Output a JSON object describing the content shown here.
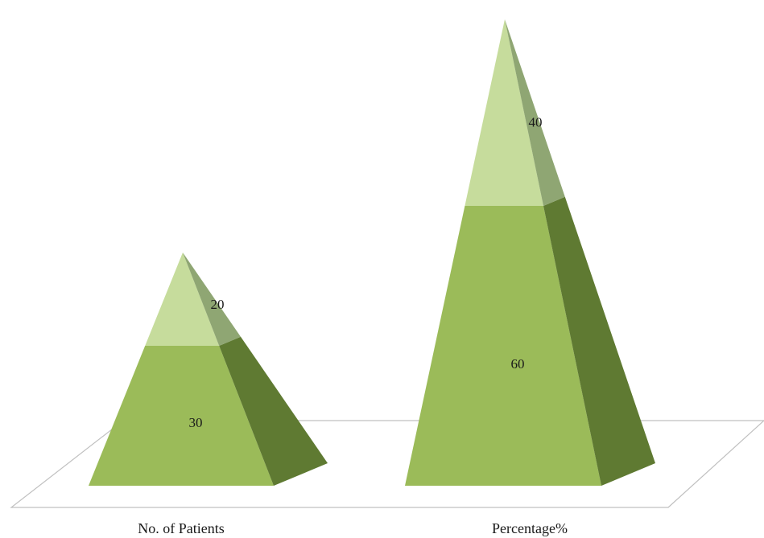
{
  "chart_data": {
    "type": "bar",
    "style": "3d-pyramid",
    "stacked": true,
    "grid": false,
    "legend": "none",
    "title": "",
    "xlabel": "",
    "ylabel": "",
    "categories": [
      "No. of Patients",
      "Percentage%"
    ],
    "series": [
      {
        "values": [
          30,
          60
        ]
      },
      {
        "values": [
          20,
          40
        ]
      }
    ],
    "colors": {
      "bottom_front": "#9bbb59",
      "bottom_side": "#5f7a32",
      "top_front": "#c6dc9c",
      "top_side": "#8fa673",
      "floor_line": "#c0c0c0"
    }
  }
}
